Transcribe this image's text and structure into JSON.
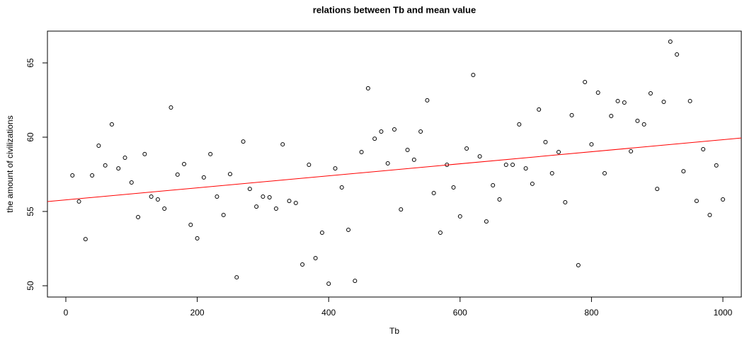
{
  "chart_data": {
    "type": "scatter",
    "title": "relations between Tb and mean value",
    "x_label": "Tb",
    "y_label": "the amount of civilizations",
    "x": [
      10,
      20,
      30,
      40,
      50,
      60,
      70,
      80,
      90,
      100,
      110,
      120,
      130,
      140,
      150,
      160,
      170,
      180,
      190,
      200,
      210,
      220,
      230,
      240,
      250,
      260,
      270,
      280,
      290,
      300,
      310,
      320,
      330,
      340,
      350,
      360,
      370,
      380,
      390,
      400,
      410,
      420,
      430,
      440,
      450,
      460,
      470,
      480,
      490,
      500,
      510,
      520,
      530,
      540,
      550,
      560,
      570,
      580,
      590,
      600,
      610,
      620,
      630,
      640,
      650,
      660,
      670,
      680,
      690,
      700,
      710,
      720,
      730,
      740,
      750,
      760,
      770,
      780,
      790,
      800,
      810,
      820,
      830,
      840,
      850,
      860,
      870,
      880,
      890,
      900,
      910,
      920,
      930,
      940,
      950,
      960,
      970,
      980,
      990,
      1000
    ],
    "values": [
      57.43,
      55.67,
      53.14,
      57.43,
      59.43,
      58.1,
      60.86,
      57.9,
      58.62,
      56.95,
      54.62,
      58.86,
      56.0,
      55.81,
      55.19,
      62.0,
      57.48,
      58.19,
      54.1,
      53.19,
      57.29,
      58.86,
      56.0,
      54.76,
      57.52,
      50.57,
      59.71,
      56.52,
      55.33,
      56.0,
      55.95,
      55.19,
      59.52,
      55.71,
      55.57,
      51.43,
      58.14,
      51.86,
      53.57,
      50.14,
      57.9,
      56.62,
      53.76,
      50.33,
      59.0,
      63.29,
      59.9,
      60.38,
      58.24,
      60.52,
      55.14,
      59.14,
      58.48,
      60.38,
      62.48,
      56.24,
      53.57,
      58.14,
      56.62,
      54.67,
      59.24,
      64.19,
      58.71,
      54.33,
      56.76,
      55.81,
      58.14,
      58.14,
      60.86,
      57.9,
      56.86,
      61.86,
      59.67,
      57.57,
      59.0,
      55.62,
      61.48,
      51.38,
      63.71,
      59.52,
      63.0,
      57.57,
      61.43,
      62.43,
      62.33,
      59.05,
      61.1,
      60.86,
      62.95,
      56.52,
      62.38,
      66.43,
      65.57,
      57.71,
      62.43,
      55.71,
      59.19,
      54.76,
      58.1,
      55.81
    ],
    "color": "#000000",
    "trend": {
      "intercept": 55.78,
      "slope": 0.00405,
      "color": "#ff0000"
    },
    "xlim": [
      -28,
      1028
    ],
    "ylim": [
      49.24,
      67.14
    ],
    "xticks": [
      0,
      200,
      400,
      600,
      800,
      1000
    ],
    "yticks": [
      50,
      55,
      60,
      65
    ],
    "grid": false
  }
}
